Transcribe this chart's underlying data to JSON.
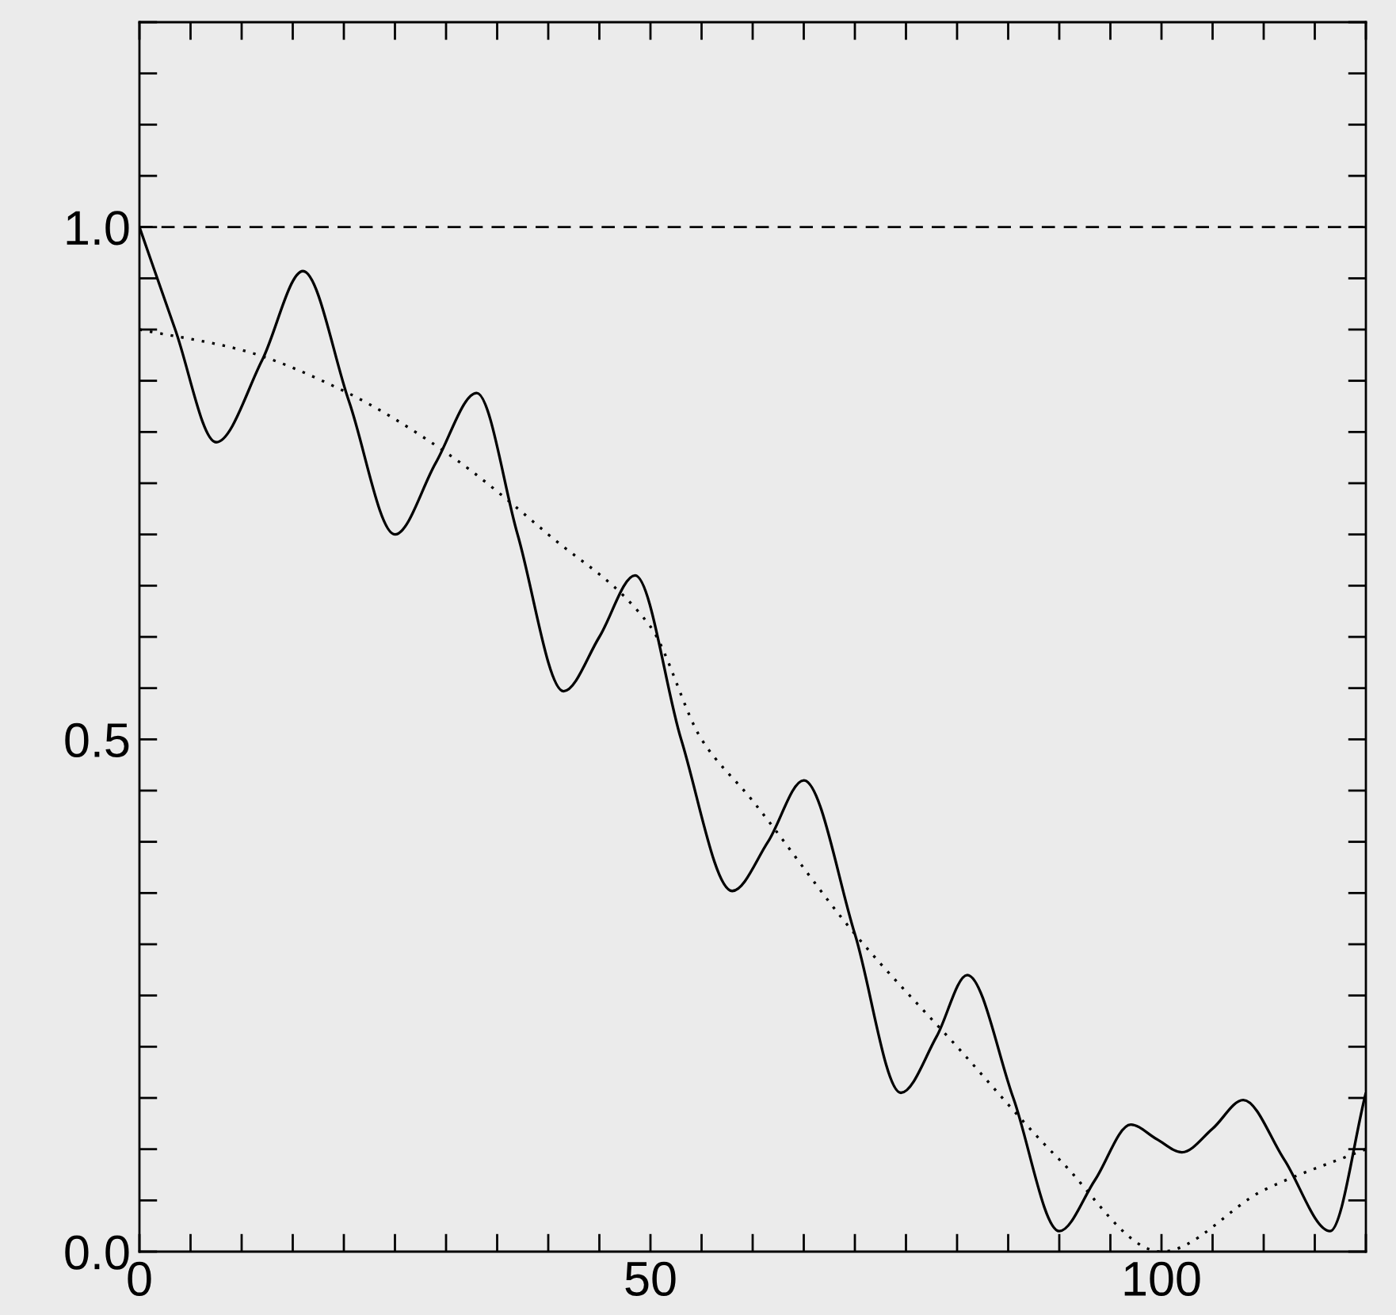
{
  "chart_data": {
    "type": "line",
    "xlim": [
      0,
      120
    ],
    "ylim": [
      0,
      1.2
    ],
    "xticks": [
      {
        "value": 0,
        "label": "0"
      },
      {
        "value": 5,
        "label": null
      },
      {
        "value": 10,
        "label": null
      },
      {
        "value": 15,
        "label": null
      },
      {
        "value": 20,
        "label": null
      },
      {
        "value": 25,
        "label": null
      },
      {
        "value": 30,
        "label": null
      },
      {
        "value": 35,
        "label": null
      },
      {
        "value": 40,
        "label": null
      },
      {
        "value": 45,
        "label": null
      },
      {
        "value": 50,
        "label": "50"
      },
      {
        "value": 55,
        "label": null
      },
      {
        "value": 60,
        "label": null
      },
      {
        "value": 65,
        "label": null
      },
      {
        "value": 70,
        "label": null
      },
      {
        "value": 75,
        "label": null
      },
      {
        "value": 80,
        "label": null
      },
      {
        "value": 85,
        "label": null
      },
      {
        "value": 90,
        "label": null
      },
      {
        "value": 95,
        "label": null
      },
      {
        "value": 100,
        "label": "100"
      },
      {
        "value": 105,
        "label": null
      },
      {
        "value": 110,
        "label": null
      },
      {
        "value": 115,
        "label": null
      },
      {
        "value": 120,
        "label": null
      }
    ],
    "yticks": [
      {
        "value": 0,
        "label": "0.0"
      },
      {
        "value": 0.05,
        "label": null
      },
      {
        "value": 0.1,
        "label": null
      },
      {
        "value": 0.15,
        "label": null
      },
      {
        "value": 0.2,
        "label": null
      },
      {
        "value": 0.25,
        "label": null
      },
      {
        "value": 0.3,
        "label": null
      },
      {
        "value": 0.35,
        "label": null
      },
      {
        "value": 0.4,
        "label": null
      },
      {
        "value": 0.45,
        "label": null
      },
      {
        "value": 0.5,
        "label": "0.5"
      },
      {
        "value": 0.55,
        "label": null
      },
      {
        "value": 0.6,
        "label": null
      },
      {
        "value": 0.65,
        "label": null
      },
      {
        "value": 0.7,
        "label": null
      },
      {
        "value": 0.75,
        "label": null
      },
      {
        "value": 0.8,
        "label": null
      },
      {
        "value": 0.85,
        "label": null
      },
      {
        "value": 0.9,
        "label": null
      },
      {
        "value": 0.95,
        "label": null
      },
      {
        "value": 1.0,
        "label": "1.0"
      },
      {
        "value": 1.05,
        "label": null
      },
      {
        "value": 1.1,
        "label": null
      },
      {
        "value": 1.15,
        "label": null
      },
      {
        "value": 1.2,
        "label": null
      }
    ],
    "grid": false,
    "legend": false,
    "marker": "none",
    "ref_lines": [
      {
        "axis": "y",
        "value": 1.0,
        "color": "#000000",
        "line_style": "dashed"
      }
    ],
    "series": [
      {
        "color": "#000000",
        "line_style": "solid",
        "x": [
          0,
          3.5,
          7.5,
          12,
          16,
          20.5,
          25,
          29,
          33,
          37,
          41.5,
          45,
          48.5,
          53,
          58,
          61.5,
          65,
          70,
          74.5,
          78,
          81,
          85.5,
          90,
          93.5,
          97,
          99.5,
          102,
          105,
          108,
          112,
          116.5,
          120
        ],
        "values": [
          1.0,
          0.9,
          0.79,
          0.87,
          0.957,
          0.83,
          0.7,
          0.77,
          0.838,
          0.7,
          0.547,
          0.6,
          0.66,
          0.5,
          0.352,
          0.4,
          0.46,
          0.31,
          0.155,
          0.21,
          0.27,
          0.15,
          0.02,
          0.07,
          0.124,
          0.11,
          0.097,
          0.12,
          0.148,
          0.09,
          0.02,
          0.155
        ]
      },
      {
        "color": "#000000",
        "line_style": "dotted",
        "x": [
          0,
          10,
          20,
          30,
          40,
          50,
          55,
          60,
          70,
          80,
          90,
          100,
          110,
          120
        ],
        "values": [
          0.9,
          0.88,
          0.84,
          0.78,
          0.7,
          0.61,
          0.5,
          0.44,
          0.31,
          0.2,
          0.09,
          0.0,
          0.06,
          0.1
        ]
      }
    ]
  }
}
